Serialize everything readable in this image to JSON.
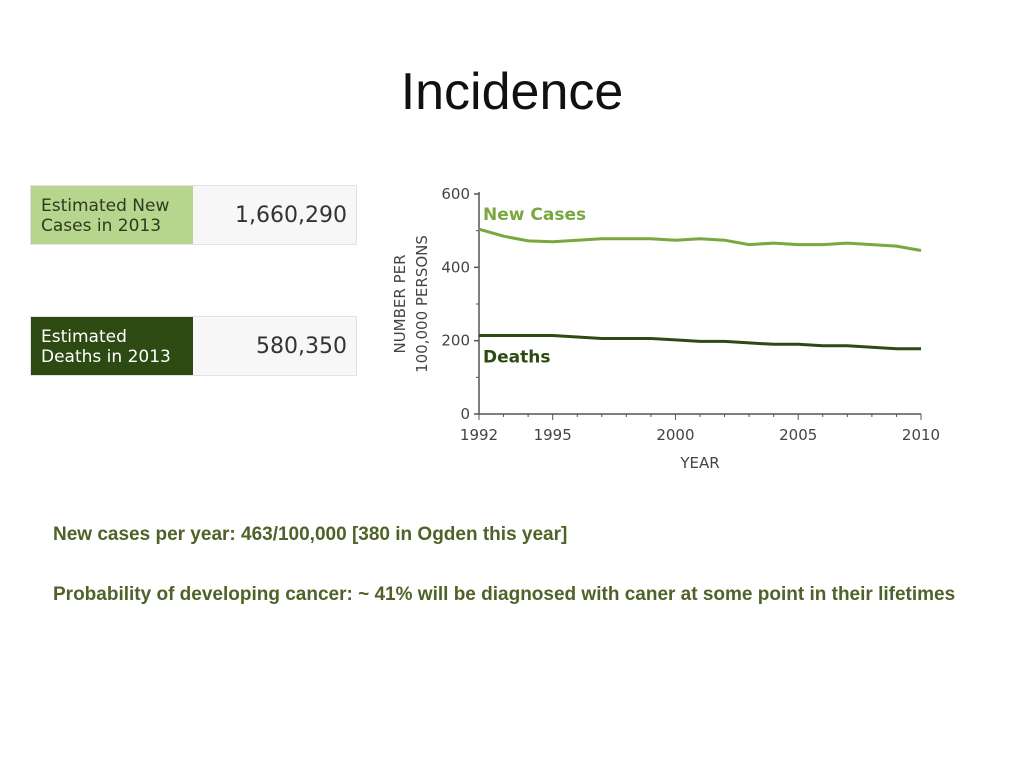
{
  "slide": {
    "title": "Incidence"
  },
  "stats": {
    "new_cases": {
      "label_line1": "Estimated New",
      "label_line2": "Cases in 2013",
      "value": "1,660,290"
    },
    "deaths": {
      "label_line1": "Estimated",
      "label_line2": "Deaths in 2013",
      "value": "580,350"
    }
  },
  "notes": {
    "line1": "New cases per year:  463/100,000    [380 in Ogden this year]",
    "line2": "Probability of developing cancer: ~ 41% will be diagnosed with caner at some point in their lifetimes"
  },
  "colors": {
    "new_cases": "#78a83e",
    "deaths": "#2d4a12",
    "notes_text": "#4f6228"
  },
  "chart_data": {
    "type": "line",
    "xlabel": "YEAR",
    "ylabel_line1": "NUMBER PER",
    "ylabel_line2": "100,000 PERSONS",
    "xlim": [
      1992,
      2010
    ],
    "ylim": [
      0,
      600
    ],
    "xticks": [
      1992,
      1995,
      2000,
      2005,
      2010
    ],
    "yticks": [
      0,
      200,
      400,
      600
    ],
    "grid": false,
    "x": [
      1992,
      1993,
      1994,
      1995,
      1996,
      1997,
      1998,
      1999,
      2000,
      2001,
      2002,
      2003,
      2004,
      2005,
      2006,
      2007,
      2008,
      2009,
      2010
    ],
    "series": [
      {
        "name": "New Cases",
        "color": "#78a83e",
        "values": [
          504,
          485,
          472,
          470,
          474,
          478,
          478,
          478,
          474,
          478,
          474,
          462,
          466,
          462,
          462,
          466,
          462,
          458,
          446
        ]
      },
      {
        "name": "Deaths",
        "color": "#2d4a12",
        "values": [
          214,
          214,
          214,
          214,
          210,
          206,
          206,
          206,
          202,
          198,
          198,
          194,
          190,
          190,
          186,
          186,
          182,
          178,
          178
        ]
      }
    ]
  }
}
